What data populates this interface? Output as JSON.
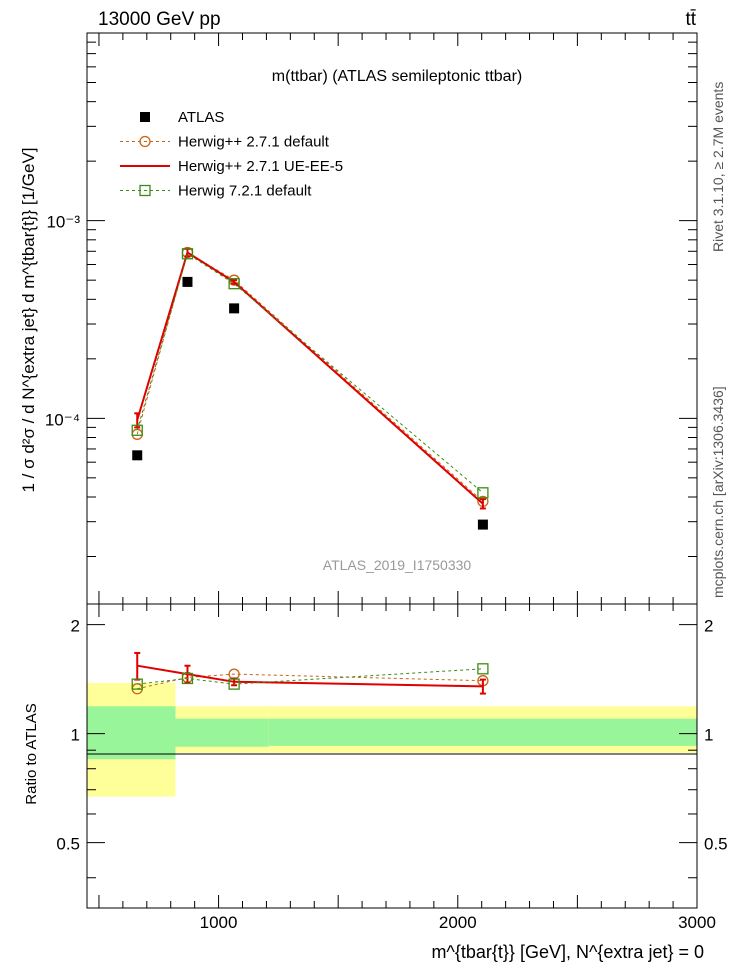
{
  "header": {
    "energy_label": "13000 GeV pp",
    "process_label": "tt̄"
  },
  "side_labels": {
    "rivet": "Rivet 3.1.10, ≥ 2.7M events",
    "mcplots": "mcplots.cern.ch [arXiv:1306.3436]"
  },
  "chart_data": [
    {
      "type": "scatter",
      "title": "m(ttbar) (ATLAS semileptonic ttbar)",
      "watermark": "ATLAS_2019_I1750330",
      "ylabel": "1 / σ d²σ / d N^{extra jet} d m^{tbar{t}} [1/GeV]",
      "yscale": "log",
      "xlim": [
        450,
        3000
      ],
      "ylim": [
        1.15e-05,
        0.0089
      ],
      "ytick_labels": [
        "10⁻⁴",
        "10⁻³"
      ],
      "legend_position": "top-left",
      "x": [
        660,
        870,
        1065,
        2105
      ],
      "series": [
        {
          "name": "ATLAS",
          "color": "#000000",
          "marker": "square-filled",
          "values": [
            6.5e-05,
            0.00049,
            0.00036,
            2.9e-05
          ]
        },
        {
          "name": "Herwig++ 2.7.1 default",
          "color": "#c86414",
          "marker": "circle-open",
          "line": "dashed",
          "values": [
            8.3e-05,
            0.00069,
            0.0005,
            3.8e-05
          ]
        },
        {
          "name": "Herwig++ 2.7.1 UE-EE-5",
          "color": "#e00000",
          "marker": "none",
          "line": "solid",
          "values": [
            9.8e-05,
            0.00069,
            0.00049,
            3.7e-05
          ],
          "errors": [
            8e-06,
            3e-05,
            1e-05,
            2e-06
          ]
        },
        {
          "name": "Herwig 7.2.1 default",
          "color": "#3c8c14",
          "marker": "square-open",
          "line": "dashed",
          "values": [
            8.7e-05,
            0.00068,
            0.00048,
            4.2e-05
          ]
        }
      ]
    },
    {
      "type": "scatter",
      "ylabel": "Ratio to ATLAS",
      "xlabel": "m^{tbar{t}} [GeV], N^{extra jet} = 0",
      "xlim": [
        450,
        3000
      ],
      "ylim": [
        0.33,
        2.28
      ],
      "ytick_labels": [
        "0.5",
        "1",
        "2"
      ],
      "xtick_labels": [
        "1000",
        "2000",
        "3000"
      ],
      "uncertainty_bins": [
        {
          "x0": 450,
          "x1": 820,
          "stat_low": 0.85,
          "stat_high": 1.19,
          "total_low": 0.67,
          "total_high": 1.38
        },
        {
          "x0": 820,
          "x1": 1210,
          "stat_low": 0.92,
          "stat_high": 1.1,
          "total_low": 0.885,
          "total_high": 1.19
        },
        {
          "x0": 1210,
          "x1": 3000,
          "stat_low": 0.925,
          "stat_high": 1.1,
          "total_low": 0.885,
          "total_high": 1.19
        }
      ],
      "x": [
        660,
        870,
        1065,
        2105
      ],
      "series": [
        {
          "name": "Herwig++ 2.7.1 default",
          "color": "#c86414",
          "marker": "circle-open",
          "line": "dashed",
          "values": [
            1.33,
            1.43,
            1.46,
            1.4
          ]
        },
        {
          "name": "Herwig++ 2.7.1 UE-EE-5",
          "color": "#e00000",
          "marker": "none",
          "line": "solid",
          "values": [
            1.54,
            1.46,
            1.39,
            1.35
          ],
          "errors": [
            0.13,
            0.08,
            0.03,
            0.06
          ]
        },
        {
          "name": "Herwig 7.2.1 default",
          "color": "#3c8c14",
          "marker": "square-open",
          "line": "dashed",
          "values": [
            1.37,
            1.42,
            1.37,
            1.51
          ]
        }
      ]
    }
  ]
}
